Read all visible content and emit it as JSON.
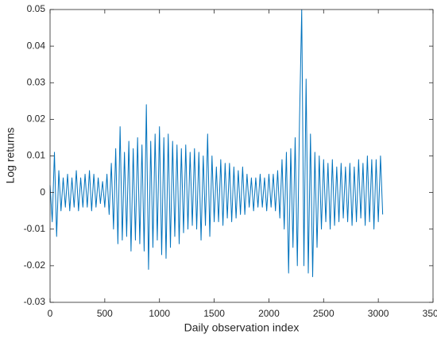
{
  "chart_data": {
    "type": "line",
    "xlabel": "Daily observation index",
    "ylabel": "Log returns",
    "xlim": [
      0,
      3500
    ],
    "xticks": [
      0,
      500,
      1000,
      1500,
      2000,
      2500,
      3000,
      3500
    ],
    "ylim": [
      -0.03,
      0.05
    ],
    "yticks": [
      -0.03,
      -0.02,
      -0.01,
      0,
      0.01,
      0.02,
      0.03,
      0.04,
      0.05
    ],
    "x": [
      0,
      20,
      40,
      60,
      80,
      100,
      120,
      140,
      160,
      180,
      200,
      220,
      240,
      260,
      280,
      300,
      320,
      340,
      360,
      380,
      400,
      420,
      440,
      460,
      480,
      500,
      520,
      540,
      560,
      580,
      600,
      620,
      640,
      660,
      680,
      700,
      720,
      740,
      760,
      780,
      800,
      820,
      840,
      860,
      880,
      900,
      920,
      940,
      960,
      980,
      1000,
      1020,
      1040,
      1060,
      1080,
      1100,
      1120,
      1140,
      1160,
      1180,
      1200,
      1220,
      1240,
      1260,
      1280,
      1300,
      1320,
      1340,
      1360,
      1380,
      1400,
      1420,
      1440,
      1460,
      1480,
      1500,
      1520,
      1540,
      1560,
      1580,
      1600,
      1620,
      1640,
      1660,
      1680,
      1700,
      1720,
      1740,
      1760,
      1780,
      1800,
      1820,
      1840,
      1860,
      1880,
      1900,
      1920,
      1940,
      1960,
      1980,
      2000,
      2020,
      2040,
      2060,
      2080,
      2100,
      2120,
      2140,
      2160,
      2180,
      2200,
      2220,
      2240,
      2260,
      2280,
      2300,
      2320,
      2340,
      2360,
      2380,
      2400,
      2420,
      2440,
      2460,
      2480,
      2500,
      2520,
      2540,
      2560,
      2580,
      2600,
      2620,
      2640,
      2660,
      2680,
      2700,
      2720,
      2740,
      2760,
      2780,
      2800,
      2820,
      2840,
      2860,
      2880,
      2900,
      2920,
      2940,
      2960,
      2980,
      3000,
      3020,
      3040
    ],
    "series": [
      {
        "color": "#0072bd",
        "values": [
          0.002,
          -0.008,
          0.011,
          -0.012,
          0.006,
          -0.005,
          0.004,
          -0.004,
          0.005,
          -0.005,
          0.004,
          -0.004,
          0.006,
          -0.005,
          0.004,
          -0.004,
          0.005,
          -0.004,
          0.006,
          -0.005,
          0.005,
          -0.004,
          0.004,
          -0.003,
          0.003,
          -0.004,
          0.005,
          -0.006,
          0.008,
          -0.01,
          0.012,
          -0.014,
          0.018,
          -0.013,
          0.011,
          -0.012,
          0.014,
          -0.016,
          0.012,
          -0.013,
          0.015,
          -0.014,
          0.013,
          -0.016,
          0.024,
          -0.021,
          0.014,
          -0.015,
          0.016,
          -0.013,
          0.018,
          -0.017,
          0.015,
          -0.018,
          0.016,
          -0.015,
          0.014,
          -0.012,
          0.013,
          -0.014,
          0.012,
          -0.011,
          0.013,
          -0.01,
          0.011,
          -0.009,
          0.012,
          -0.01,
          0.011,
          -0.013,
          0.01,
          -0.009,
          0.016,
          -0.012,
          0.01,
          -0.008,
          0.007,
          -0.008,
          0.009,
          -0.009,
          0.008,
          -0.007,
          0.008,
          -0.008,
          0.007,
          -0.007,
          0.006,
          -0.006,
          0.007,
          -0.006,
          0.005,
          -0.004,
          0.004,
          -0.005,
          0.004,
          -0.004,
          0.005,
          -0.004,
          0.004,
          -0.005,
          0.005,
          -0.004,
          0.005,
          -0.005,
          0.006,
          -0.007,
          0.009,
          -0.01,
          0.011,
          -0.022,
          0.012,
          -0.015,
          0.015,
          -0.02,
          0.02,
          0.05,
          -0.02,
          0.031,
          -0.022,
          0.016,
          -0.023,
          0.011,
          -0.015,
          0.01,
          -0.01,
          0.009,
          -0.008,
          0.008,
          -0.01,
          0.009,
          -0.009,
          0.007,
          -0.008,
          0.008,
          -0.007,
          0.007,
          -0.008,
          0.008,
          -0.009,
          0.007,
          -0.008,
          0.009,
          -0.007,
          0.008,
          -0.009,
          0.01,
          -0.008,
          0.009,
          -0.01,
          0.009,
          -0.008,
          0.01,
          -0.006
        ]
      }
    ]
  }
}
